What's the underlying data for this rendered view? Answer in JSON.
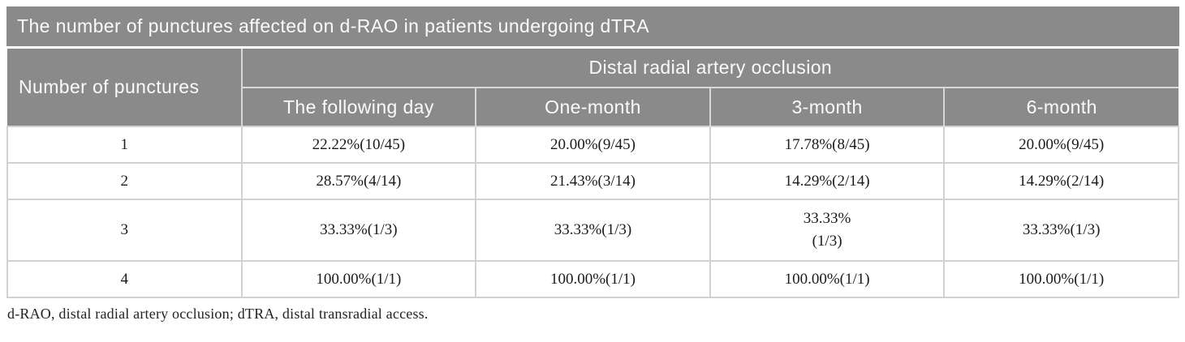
{
  "table": {
    "title": "The number of punctures affected on d-RAO in patients undergoing dTRA",
    "col1_header": "Number of punctures",
    "span_header": "Distal radial artery occlusion",
    "sub_headers": [
      "The following day",
      "One-month",
      "3-month",
      "6-month"
    ],
    "rows": [
      {
        "label": "1",
        "cells": [
          "22.22%(10/45)",
          "20.00%(9/45)",
          "17.78%(8/45)",
          "20.00%(9/45)"
        ]
      },
      {
        "label": "2",
        "cells": [
          "28.57%(4/14)",
          "21.43%(3/14)",
          "14.29%(2/14)",
          "14.29%(2/14)"
        ]
      },
      {
        "label": "3",
        "cells": [
          "33.33%(1/3)",
          "33.33%(1/3)",
          "33.33%\n(1/3)",
          "33.33%(1/3)"
        ]
      },
      {
        "label": "4",
        "cells": [
          "100.00%(1/1)",
          "100.00%(1/1)",
          "100.00%(1/1)",
          "100.00%(1/1)"
        ]
      }
    ],
    "footnote": "d-RAO, distal radial artery occlusion; dTRA, distal transradial access.",
    "colors": {
      "header_bg": "#8a8a8a",
      "header_text": "#fafafa",
      "body_border": "#d2d2d2",
      "body_text": "#1b1b1b"
    }
  }
}
